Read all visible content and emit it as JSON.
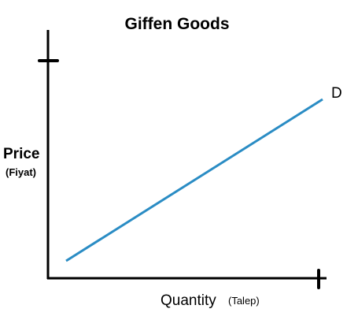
{
  "title": "Giffen Goods",
  "y_axis": {
    "label": "Price",
    "sublabel": "(Fiyat)"
  },
  "x_axis": {
    "label": "Quantity",
    "sublabel": "(Talep)"
  },
  "curve": {
    "label": "D"
  }
}
